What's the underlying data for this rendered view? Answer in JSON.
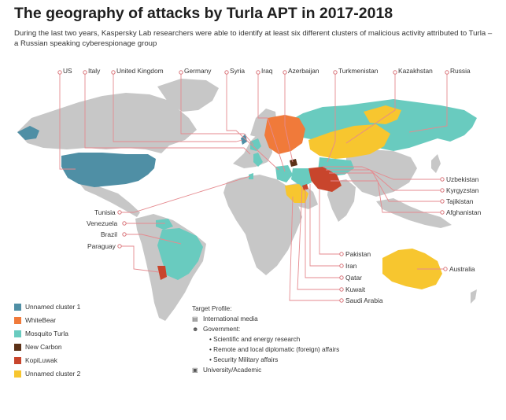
{
  "title": "The geography of attacks by Turla APT in 2017-2018",
  "subtitle": "During the last two years, Kaspersky Lab researchers were able to identify at least six different clusters of malicious activity attributed to Turla – a Russian speaking cyberespionage group",
  "colors": {
    "unnamed_cluster_1": "#4f8fa5",
    "whitebear": "#f07a3a",
    "mosquito_turla": "#69cbbf",
    "new_carbon": "#5c3117",
    "kopiluwak": "#c8452c",
    "unnamed_cluster_2": "#f7c62f",
    "land_gray": "#c7c7c7",
    "leader_line": "#e58a8f"
  },
  "countries": {
    "top": [
      "US",
      "Italy",
      "United Kingdom",
      "Germany",
      "Syria",
      "Iraq",
      "Azerbaijan",
      "Turkmenistan",
      "Kazakhstan",
      "Russia"
    ],
    "right": [
      "Uzbekistan",
      "Kyrgyzstan",
      "Tajikistan",
      "Afghanistan"
    ],
    "left": [
      "Tunisia",
      "Venezuela",
      "Brazil",
      "Paraguay"
    ],
    "bottom": [
      "Pakistan",
      "Iran",
      "Qatar",
      "Kuwait",
      "Saudi Arabia"
    ],
    "australia": "Australia"
  },
  "legend": [
    {
      "label": "Unnamed cluster 1",
      "color": "#4f8fa5"
    },
    {
      "label": "WhiteBear",
      "color": "#f07a3a"
    },
    {
      "label": "Mosquito Turla",
      "color": "#69cbbf"
    },
    {
      "label": "New Carbon",
      "color": "#5c3117"
    },
    {
      "label": "KopiLuwak",
      "color": "#c8452c"
    },
    {
      "label": "Unnamed cluster 2",
      "color": "#f7c62f"
    }
  ],
  "target_profile": {
    "title": "Target Profile:",
    "international_media": "International media",
    "government": "Government:",
    "gov_items": [
      "Scientific and energy research",
      "Remote and local diplomatic (foreign) affairs",
      "Security Military affairs"
    ],
    "university": "University/Academic"
  }
}
